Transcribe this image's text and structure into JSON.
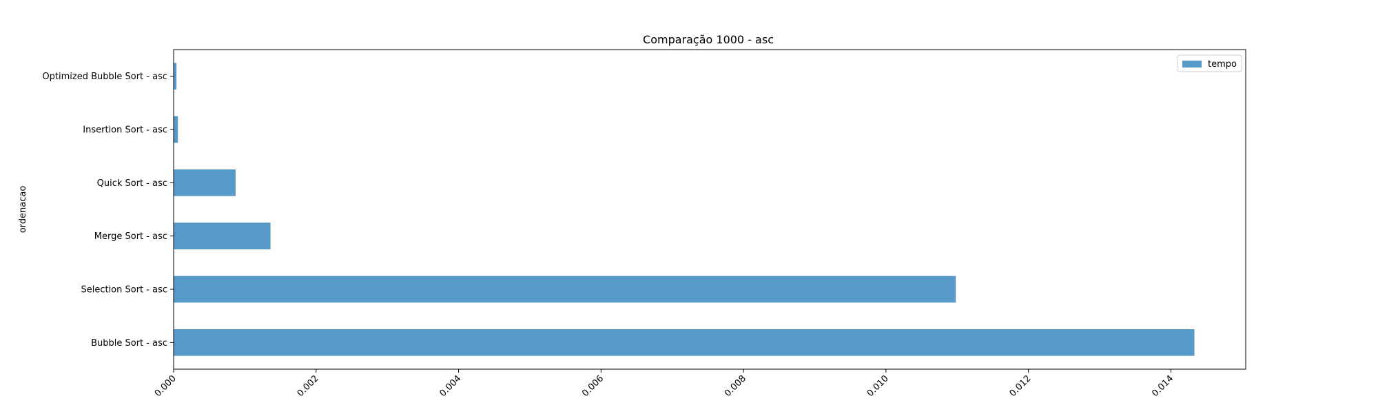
{
  "chart_data": {
    "type": "bar",
    "orientation": "horizontal",
    "title": "Comparação 1000 - asc",
    "xlabel": "",
    "ylabel": "ordenacao",
    "categories": [
      "Optimized Bubble Sort - asc",
      "Insertion Sort - asc",
      "Quick Sort - asc",
      "Merge Sort - asc",
      "Selection Sort - asc",
      "Bubble Sort - asc"
    ],
    "series": [
      {
        "name": "tempo",
        "color": "#5799c7",
        "values": [
          4e-05,
          6e-05,
          0.00087,
          0.00136,
          0.01098,
          0.01433
        ]
      }
    ],
    "xlim": [
      0,
      0.01505
    ],
    "xticks": [
      0.0,
      0.002,
      0.004,
      0.006,
      0.008,
      0.01,
      0.012,
      0.014
    ],
    "xtick_labels": [
      "0.000",
      "0.002",
      "0.004",
      "0.006",
      "0.008",
      "0.010",
      "0.012",
      "0.014"
    ],
    "grid": false,
    "legend": "top-right"
  }
}
